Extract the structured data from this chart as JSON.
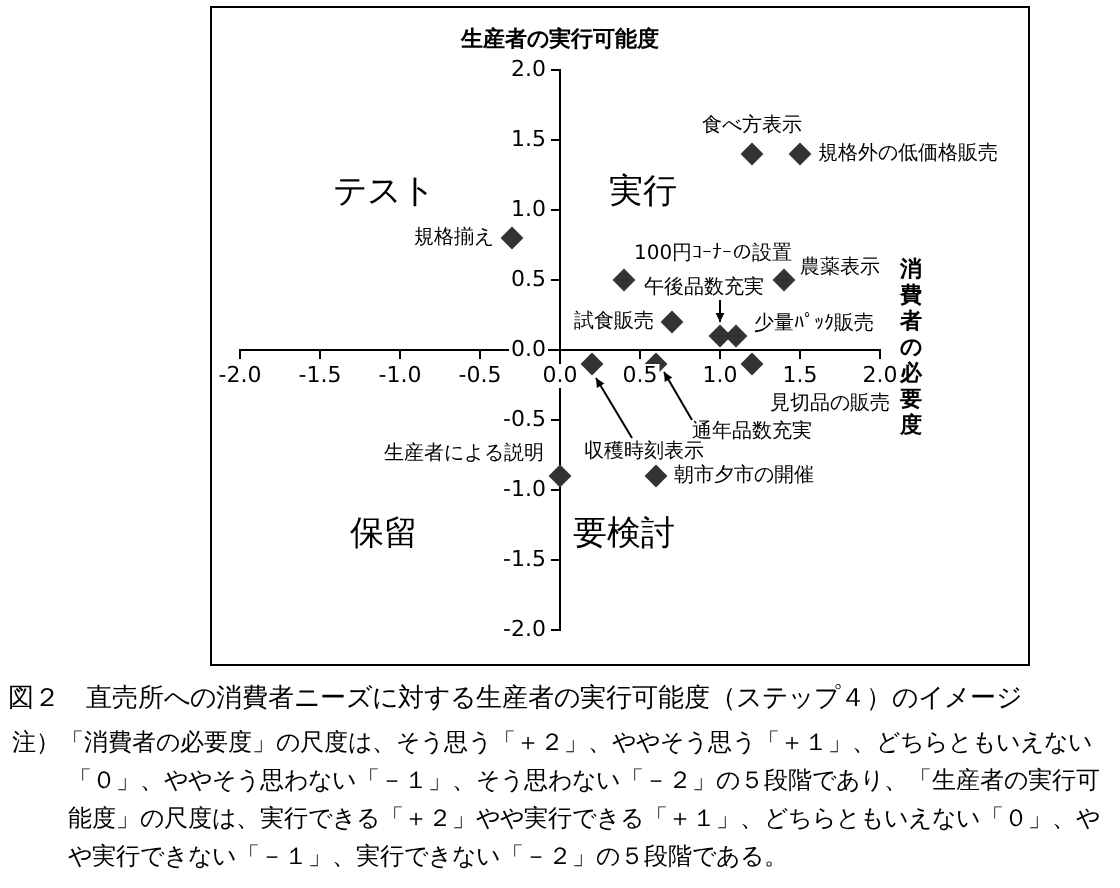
{
  "chart_data": {
    "type": "scatter",
    "title": "図２　直売所への消費者ニーズに対する生産者の実行可能度（ステップ４）のイメージ",
    "xlabel": "消費者の必要度",
    "ylabel": "生産者の実行可能度",
    "xlim": [
      -2,
      2
    ],
    "ylim": [
      -2,
      2
    ],
    "xticks": [
      {
        "value": -2,
        "label": "-2.0"
      },
      {
        "value": -1.5,
        "label": "-1.5"
      },
      {
        "value": -1,
        "label": "-1.0"
      },
      {
        "value": -0.5,
        "label": "-0.5"
      },
      {
        "value": 0,
        "label": "0.0"
      },
      {
        "value": 0.5,
        "label": "0.5"
      },
      {
        "value": 1,
        "label": "1.0"
      },
      {
        "value": 1.5,
        "label": "1.5"
      },
      {
        "value": 2,
        "label": "2.0"
      }
    ],
    "yticks": [
      {
        "value": -2,
        "label": "-2.0"
      },
      {
        "value": -1.5,
        "label": "-1.5"
      },
      {
        "value": -1,
        "label": "-1.0"
      },
      {
        "value": -0.5,
        "label": "-0.5"
      },
      {
        "value": 0,
        "label": "0.0"
      },
      {
        "value": 0.5,
        "label": "0.5"
      },
      {
        "value": 1,
        "label": "1.0"
      },
      {
        "value": 1.5,
        "label": "1.5"
      },
      {
        "value": 2,
        "label": "2.0"
      }
    ],
    "grid": false,
    "legend": false,
    "marker": "diamond",
    "series": [
      {
        "name": "食べ方表示",
        "color": "#333333",
        "x": [
          1.2
        ],
        "values": [
          1.4
        ]
      },
      {
        "name": "規格外の低価格販売",
        "color": "#333333",
        "x": [
          1.5
        ],
        "values": [
          1.4
        ]
      },
      {
        "name": "規格揃え",
        "color": "#333333",
        "x": [
          -0.3
        ],
        "values": [
          0.8
        ]
      },
      {
        "name": "100円ｺｰﾅｰの設置",
        "color": "#333333",
        "x": [
          0.4
        ],
        "values": [
          0.5
        ]
      },
      {
        "name": "農薬表示",
        "color": "#333333",
        "x": [
          1.4
        ],
        "values": [
          0.5
        ]
      },
      {
        "name": "試食販売",
        "color": "#333333",
        "x": [
          0.7
        ],
        "values": [
          0.2
        ]
      },
      {
        "name": "午後品数充実",
        "color": "#333333",
        "x": [
          1.0
        ],
        "values": [
          0.1
        ]
      },
      {
        "name": "少量ﾊﾟｯｸ販売",
        "color": "#333333",
        "x": [
          1.1
        ],
        "values": [
          0.1
        ]
      },
      {
        "name": "見切品の販売",
        "color": "#333333",
        "x": [
          1.2
        ],
        "values": [
          -0.1
        ]
      },
      {
        "name": "収穫時刻表示",
        "color": "#333333",
        "x": [
          0.2
        ],
        "values": [
          -0.1
        ]
      },
      {
        "name": "通年品数充実",
        "color": "#333333",
        "x": [
          0.6
        ],
        "values": [
          -0.1
        ]
      },
      {
        "name": "生産者による説明",
        "color": "#333333",
        "x": [
          0.0
        ],
        "values": [
          -0.9
        ]
      },
      {
        "name": "朝市夕市の開催",
        "color": "#333333",
        "x": [
          0.6
        ],
        "values": [
          -0.9
        ]
      }
    ],
    "annotations": [
      "テスト",
      "実行",
      "保留",
      "要検討",
      "注）「消費者の必要度」の尺度は、そう思う「＋２」、ややそう思う「＋１」、どちらともいえない「０」、ややそう思わない「－１」、そう思わない「－２」の５段階であり、「生産者の実行可能度」の尺度は、実行できる「＋２」やや実行できる「＋１」、どちらともいえない「０」、やや実行できない「－１」、実行できない「－２」の５段階である。"
    ]
  }
}
